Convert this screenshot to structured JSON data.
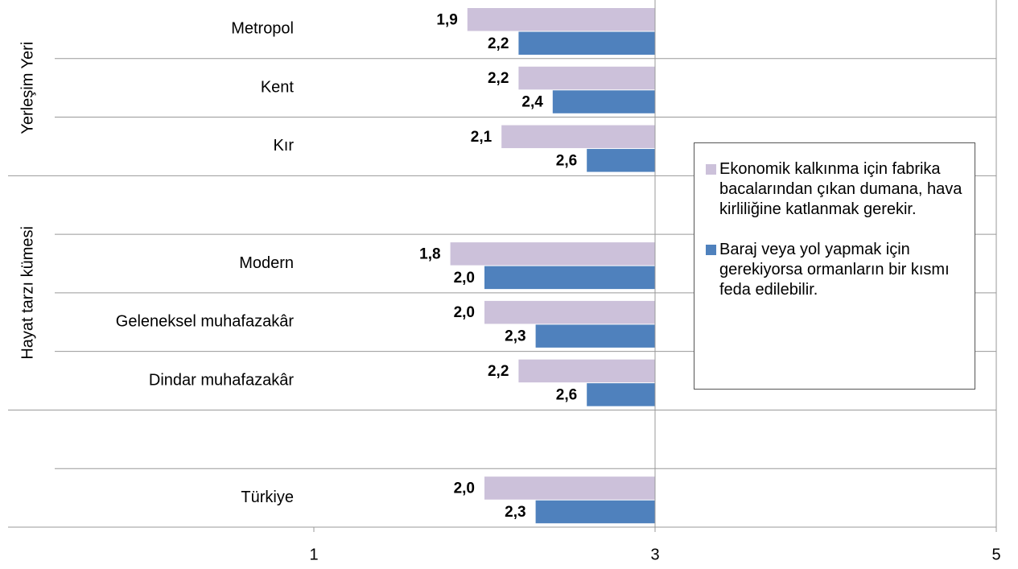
{
  "chart_data": {
    "type": "bar",
    "orientation": "horizontal",
    "categories": [
      "Metropol",
      "Kent",
      "Kır",
      null,
      "Modern",
      "Geleneksel muhafazakâr",
      "Dindar muhafazakâr",
      null,
      "Türkiye"
    ],
    "groups": [
      "Yerleşim Yeri",
      "Hayat tarzı kümesi"
    ],
    "series": [
      {
        "name": "Ekonomik kalkınma için fabrika bacalarından çıkan dumana, hava kirliliğine katlanmak gerekir.",
        "color": "#ccc1da",
        "values": [
          1.9,
          2.2,
          2.1,
          null,
          1.8,
          2.0,
          2.2,
          null,
          2.0
        ],
        "value_labels": [
          "1,9",
          "2,2",
          "2,1",
          null,
          "1,8",
          "2,0",
          "2,2",
          null,
          "2,0"
        ]
      },
      {
        "name": "Baraj veya yol yapmak için gerekiyorsa ormanların bir kısmı feda edilebilir.",
        "color": "#4f81bd",
        "values": [
          2.2,
          2.4,
          2.6,
          null,
          2.0,
          2.3,
          2.6,
          null,
          2.3
        ],
        "value_labels": [
          "2,2",
          "2,4",
          "2,6",
          null,
          "2,0",
          "2,3",
          "2,6",
          null,
          "2,3"
        ]
      }
    ],
    "xlim": [
      1,
      5
    ],
    "xticks": [
      1,
      3,
      5
    ],
    "axis_crosses": 3,
    "legend": "right"
  }
}
